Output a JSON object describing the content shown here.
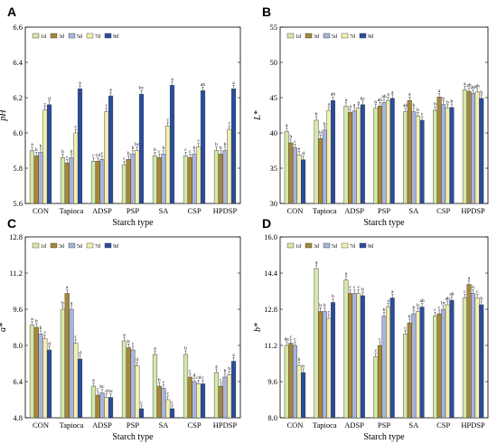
{
  "colors": [
    "#d4e8a8",
    "#a6883a",
    "#a8b4dc",
    "#f3efb0",
    "#2a4c9e"
  ],
  "chart_data": [
    {
      "type": "bar",
      "panel": "A",
      "ylabel": "pH",
      "xlabel": "Starch type",
      "ylim": [
        5.6,
        6.6
      ],
      "yticks": [
        "5.6",
        "5.8",
        "6.0",
        "6.2",
        "6.4",
        "6.6"
      ],
      "categories": [
        "CON",
        "Tapioca",
        "ADSP",
        "PSP",
        "SA",
        "CSP",
        "HPDSP"
      ],
      "legend": [
        "1d",
        "3d",
        "5d",
        "7d",
        "9d"
      ],
      "series": [
        {
          "name": "1d",
          "values": [
            5.9,
            5.86,
            5.84,
            5.82,
            5.87,
            5.87,
            5.9
          ],
          "labels": [
            "a",
            "b",
            "c",
            "c",
            "b",
            "c",
            "b"
          ]
        },
        {
          "name": "3d",
          "values": [
            5.87,
            5.83,
            5.84,
            5.85,
            5.86,
            5.86,
            5.88
          ],
          "labels": [
            "b",
            "c",
            "cd",
            "b",
            "c",
            "c",
            "b"
          ]
        },
        {
          "name": "5d",
          "values": [
            5.89,
            5.86,
            5.85,
            5.88,
            5.88,
            5.88,
            5.9
          ],
          "labels": [
            "b",
            "b",
            "c",
            "b",
            "b",
            "b",
            "b"
          ]
        },
        {
          "name": "7d",
          "values": [
            6.13,
            6.0,
            6.12,
            5.9,
            6.04,
            5.92,
            6.02
          ],
          "labels": [
            "c",
            "c",
            "c",
            "bc",
            "c",
            "c",
            "c"
          ]
        },
        {
          "name": "9d",
          "values": [
            6.16,
            6.25,
            6.21,
            6.22,
            6.27,
            6.24,
            6.25
          ],
          "labels": [
            "d",
            "a",
            "a",
            "bc",
            "a",
            "ab",
            "a"
          ]
        }
      ]
    },
    {
      "type": "bar",
      "panel": "B",
      "ylabel": "L*",
      "xlabel": "Starch type",
      "ylim": [
        30,
        55
      ],
      "yticks": [
        "30",
        "35",
        "40",
        "45",
        "50",
        "55"
      ],
      "categories": [
        "CON",
        "Tapioca",
        "ADSP",
        "PSP",
        "SA",
        "CSP",
        "HPDSP"
      ],
      "legend": [
        "1d",
        "3d",
        "5d",
        "7d",
        "9d"
      ],
      "series": [
        {
          "name": "1d",
          "values": [
            40.2,
            41.8,
            43.8,
            43.5,
            43.0,
            43.2,
            46.1
          ],
          "labels": [
            "a",
            "b",
            "a",
            "b",
            "ab",
            "b",
            "a"
          ]
        },
        {
          "name": "3d",
          "values": [
            38.6,
            39.2,
            42.9,
            43.8,
            44.6,
            45.1,
            45.9
          ],
          "labels": [
            "b",
            "b",
            "a",
            "ab",
            "a",
            "a",
            "ab"
          ]
        },
        {
          "name": "5d",
          "values": [
            37.9,
            40.4,
            43.1,
            44.3,
            43.0,
            44.0,
            45.6
          ],
          "labels": [
            "c",
            "b",
            "a",
            "ab",
            "b",
            "b",
            "ab"
          ]
        },
        {
          "name": "7d",
          "values": [
            36.9,
            43.2,
            43.5,
            44.6,
            42.4,
            43.5,
            45.8
          ],
          "labels": [
            "e",
            "a",
            "a",
            "a",
            "b",
            "b",
            "ab"
          ]
        },
        {
          "name": "9d",
          "values": [
            36.2,
            44.6,
            44.0,
            44.9,
            41.8,
            43.6,
            44.9
          ],
          "labels": [
            "d",
            "ab",
            "bc",
            "a",
            "c",
            "b",
            "b"
          ]
        }
      ]
    },
    {
      "type": "bar",
      "panel": "C",
      "ylabel": "a*",
      "xlabel": "Starch type",
      "ylim": [
        4.8,
        12.8
      ],
      "yticks": [
        "4.8",
        "6.4",
        "8.0",
        "9.6",
        "11.2",
        "12.8"
      ],
      "categories": [
        "CON",
        "Tapioca",
        "ADSP",
        "PSP",
        "SA",
        "CSP",
        "HPDSP"
      ],
      "legend": [
        "1d",
        "3d",
        "5d",
        "7d",
        "9d"
      ],
      "series": [
        {
          "name": "1d",
          "values": [
            8.9,
            9.6,
            6.2,
            8.2,
            7.6,
            7.6,
            6.8
          ],
          "labels": [
            "a",
            "b",
            "a",
            "a",
            "a",
            "b",
            "a"
          ]
        },
        {
          "name": "3d",
          "values": [
            8.8,
            10.3,
            5.8,
            7.9,
            6.2,
            6.6,
            6.2
          ],
          "labels": [
            "b",
            "a",
            "c",
            "b",
            "b",
            "c",
            "c"
          ]
        },
        {
          "name": "5d",
          "values": [
            8.5,
            9.6,
            5.9,
            7.8,
            6.1,
            6.4,
            6.6
          ],
          "labels": [
            "b",
            "a",
            "bc",
            "c",
            "c",
            "d",
            "b"
          ]
        },
        {
          "name": "7d",
          "values": [
            8.3,
            8.1,
            5.7,
            7.1,
            5.6,
            6.3,
            6.7
          ],
          "labels": [
            "c",
            "c",
            "d",
            "d",
            "c",
            "cd",
            "b"
          ]
        },
        {
          "name": "9d",
          "values": [
            7.8,
            7.4,
            5.7,
            5.2,
            5.2,
            6.3,
            7.3
          ],
          "labels": [
            "d",
            "d",
            "bc",
            "c",
            "c",
            "c",
            "a"
          ]
        }
      ]
    },
    {
      "type": "bar",
      "panel": "D",
      "ylabel": "b*",
      "xlabel": "Starch type",
      "ylim": [
        8.0,
        16.0
      ],
      "yticks": [
        "8.0",
        "9.6",
        "11.2",
        "12.8",
        "14.4",
        "16.0"
      ],
      "categories": [
        "CON",
        "Tapioca",
        "ADSP",
        "PSP",
        "SA",
        "CSP",
        "HPDSP"
      ],
      "legend": [
        "1d",
        "3d",
        "5d",
        "7d",
        "9d"
      ],
      "series": [
        {
          "name": "1d",
          "values": [
            11.2,
            14.6,
            14.1,
            10.7,
            11.7,
            12.5,
            13.3
          ],
          "labels": [
            "de",
            "a",
            "a",
            "c",
            "c",
            "c",
            "c"
          ]
        },
        {
          "name": "3d",
          "values": [
            11.3,
            12.7,
            13.5,
            11.2,
            12.2,
            12.6,
            13.9
          ],
          "labels": [
            "c",
            "b",
            "c",
            "c",
            "b",
            "c",
            "a"
          ]
        },
        {
          "name": "5d",
          "values": [
            11.2,
            12.7,
            13.5,
            12.5,
            12.6,
            12.8,
            13.5
          ],
          "labels": [
            "c",
            "b",
            "c",
            "b",
            "b",
            "bc",
            "b"
          ]
        },
        {
          "name": "7d",
          "values": [
            10.3,
            12.4,
            13.5,
            12.9,
            12.7,
            13.0,
            13.3
          ],
          "labels": [
            "b",
            "c",
            "c",
            "a",
            "b",
            "ab",
            "c"
          ]
        },
        {
          "name": "9d",
          "values": [
            10.0,
            13.1,
            13.4,
            13.3,
            12.9,
            13.2,
            13.0
          ],
          "labels": [
            "b",
            "b",
            "b",
            "a",
            "ab",
            "ab",
            "b"
          ]
        }
      ]
    }
  ]
}
